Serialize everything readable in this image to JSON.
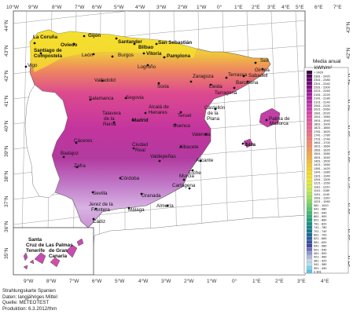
{
  "map": {
    "lon_labels_top": [
      "10°W",
      "9°W",
      "8°W",
      "7°W",
      "6°W",
      "5°W",
      "4°W",
      "3°W",
      "2°W",
      "1°W",
      "0°",
      "1°E",
      "2°E",
      "3°E",
      "4°E",
      "5°E",
      "6°E",
      "7°E"
    ],
    "lon_labels_bottom": [
      "9°W",
      "8°W",
      "7°W",
      "6°W",
      "5°W",
      "4°W",
      "3°W",
      "2°W",
      "1°W",
      "0°",
      "1°E",
      "2°E",
      "3°E",
      "4°E"
    ],
    "lat_labels_left": [
      "44°N",
      "43°N",
      "42°N",
      "41°N",
      "40°N",
      "39°N",
      "38°N",
      "37°N",
      "36°N",
      "35°N"
    ],
    "lat_labels_right": [
      "43°N",
      "42°N",
      "41°N",
      "40°N",
      "39°N",
      "38°N",
      "37°N",
      "36°N",
      "35°N",
      "34°N"
    ],
    "cities": [
      {
        "name": "La Coruña"
      },
      {
        "name": "Gijón"
      },
      {
        "name": "Oviedo"
      },
      {
        "name": "Santander"
      },
      {
        "name": "San Sebastián"
      },
      {
        "name": "Bilbao"
      },
      {
        "name": "Santiago de"
      },
      {
        "name": "Compostela"
      },
      {
        "name": "Burgos"
      },
      {
        "name": "Vitoria"
      },
      {
        "name": "Pamplona"
      },
      {
        "name": "Vigo"
      },
      {
        "name": "León"
      },
      {
        "name": "Logroño"
      },
      {
        "name": "Seit"
      },
      {
        "name": "Girona"
      },
      {
        "name": "Sabadell"
      },
      {
        "name": "Zaragoza"
      },
      {
        "name": "Terrassa"
      },
      {
        "name": "Valladolid"
      },
      {
        "name": "Soria"
      },
      {
        "name": "Lleida"
      },
      {
        "name": "Barcelona"
      },
      {
        "name": "Tarragona"
      },
      {
        "name": "Salamanca"
      },
      {
        "name": "Segovia"
      },
      {
        "name": "Alcalá de"
      },
      {
        "name": "Henares"
      },
      {
        "name": "Castellón"
      },
      {
        "name": "de la"
      },
      {
        "name": "Plana"
      },
      {
        "name": "Talavera"
      },
      {
        "name": "de la"
      },
      {
        "name": "Reina"
      },
      {
        "name": "Madrid"
      },
      {
        "name": "Teruel"
      },
      {
        "name": "Palma de"
      },
      {
        "name": "Mallorca"
      },
      {
        "name": "Cuenca"
      },
      {
        "name": "Valencia"
      },
      {
        "name": "Cáceres"
      },
      {
        "name": "Ciudad"
      },
      {
        "name": "Real"
      },
      {
        "name": "Albacete"
      },
      {
        "name": "Ibiza"
      },
      {
        "name": "Badajoz"
      },
      {
        "name": "Valdepeñas"
      },
      {
        "name": "Zafra"
      },
      {
        "name": "Alicante"
      },
      {
        "name": "Elche"
      },
      {
        "name": "Córdoba"
      },
      {
        "name": "Murcia"
      },
      {
        "name": "Cartagena"
      },
      {
        "name": "Sevilla"
      },
      {
        "name": "Granada"
      },
      {
        "name": "Jerez de la"
      },
      {
        "name": "Frontera"
      },
      {
        "name": "Málaga"
      },
      {
        "name": "Almería"
      },
      {
        "name": "Cádiz"
      }
    ],
    "inset_labels": [
      "Santa",
      "Cruz de",
      "Tenerife",
      "Las Palmas",
      "de Gran",
      "Canaria"
    ]
  },
  "legend": {
    "title": "Media anual",
    "unit": "kWh/m²",
    "classes": [
      {
        "label": "> 2420",
        "color": "#3a0045"
      },
      {
        "label": "2381 - 2420",
        "color": "#4f0058"
      },
      {
        "label": "2341 - 2380",
        "color": "#62006a"
      },
      {
        "label": "2301 - 2340",
        "color": "#74047a"
      },
      {
        "label": "2261 - 2300",
        "color": "#860a88"
      },
      {
        "label": "2221 - 2260",
        "color": "#951494"
      },
      {
        "label": "2181 - 2220",
        "color": "#a31d9e"
      },
      {
        "label": "2141 - 2180",
        "color": "#b025a7"
      },
      {
        "label": "2101 - 2140",
        "color": "#bc2cac"
      },
      {
        "label": "2061 - 2100",
        "color": "#c732ae"
      },
      {
        "label": "2021 - 2060",
        "color": "#d13aad"
      },
      {
        "label": "1981 - 2020",
        "color": "#d941a9"
      },
      {
        "label": "1941 - 1980",
        "color": "#df47a4"
      },
      {
        "label": "1901 - 1940",
        "color": "#e3519f"
      },
      {
        "label": "1861 - 1900",
        "color": "#e6589a"
      },
      {
        "label": "1821 - 1860",
        "color": "#e95f92"
      },
      {
        "label": "1781 - 1820",
        "color": "#eb6789"
      },
      {
        "label": "1741 - 1780",
        "color": "#ed6f7f"
      },
      {
        "label": "1701 - 1740",
        "color": "#ef7a76"
      },
      {
        "label": "1661 - 1700",
        "color": "#f0846c"
      },
      {
        "label": "1621 - 1660",
        "color": "#f18f61"
      },
      {
        "label": "1581 - 1620",
        "color": "#f29a56"
      },
      {
        "label": "1541 - 1580",
        "color": "#f3a54c"
      },
      {
        "label": "1501 - 1540",
        "color": "#f4b042"
      },
      {
        "label": "1461 - 1500",
        "color": "#f5bb3a"
      },
      {
        "label": "1421 - 1460",
        "color": "#f6c633"
      },
      {
        "label": "1381 - 1420",
        "color": "#f7d02e"
      },
      {
        "label": "1341 - 1380",
        "color": "#f7da2b"
      },
      {
        "label": "1301 - 1340",
        "color": "#f5e22c"
      },
      {
        "label": "1261 - 1300",
        "color": "#efe832"
      },
      {
        "label": "1221 - 1260",
        "color": "#e4ec3a"
      },
      {
        "label": "1181 - 1220",
        "color": "#d6ee43"
      },
      {
        "label": "1141 - 1180",
        "color": "#c5ed4b"
      },
      {
        "label": "1101 - 1140",
        "color": "#b1e953"
      },
      {
        "label": "1061 - 1100",
        "color": "#9be35a"
      },
      {
        "label": "1021 - 1060",
        "color": "#84db60"
      },
      {
        "label": "981 - 1020",
        "color": "#6cd166"
      },
      {
        "label": "941 - 980",
        "color": "#55c66c"
      },
      {
        "label": "901 - 940",
        "color": "#40ba72"
      },
      {
        "label": "861 - 900",
        "color": "#2ead78"
      },
      {
        "label": "821 - 860",
        "color": "#20a07e"
      },
      {
        "label": "781 - 820",
        "color": "#169384"
      },
      {
        "label": "741 - 780",
        "color": "#12868a"
      },
      {
        "label": "701 - 740",
        "color": "#137990"
      },
      {
        "label": "661 - 700",
        "color": "#1a6c96"
      },
      {
        "label": "621 - 660",
        "color": "#255f9c"
      },
      {
        "label": "581 - 620",
        "color": "#3352a1"
      },
      {
        "label": "541 - 580",
        "color": "#4245a6"
      },
      {
        "label": "501 - 540",
        "color": "#6a6fbc"
      },
      {
        "label": "461 - 500",
        "color": "#8f96d0"
      },
      {
        "label": "421 - 460",
        "color": "#b1b8e0"
      },
      {
        "label": "381 - 420",
        "color": "#cdd3ec"
      },
      {
        "label": "341 - 380",
        "color": "#a9e4f2"
      },
      {
        "label": "301 - 340",
        "color": "#7fd3ec"
      },
      {
        "label": "≤ 301",
        "color": "#5bc0e4"
      }
    ]
  },
  "footer": {
    "line1": "Strahlungskarte Spanien",
    "line2": "Daten:  langjähriges Mittel",
    "line3": "Quelle: METEOTEST",
    "line4": "Produktion: 6.3.2012/thm"
  }
}
